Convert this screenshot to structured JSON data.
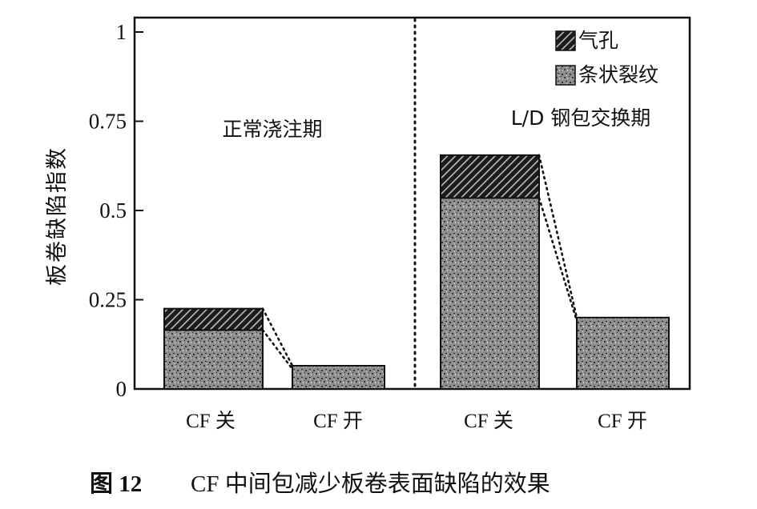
{
  "chart_data": {
    "type": "bar",
    "stacked": true,
    "ylabel": "板卷缺陷指数",
    "ylim": [
      0,
      1
    ],
    "yticks": [
      "0",
      "0.25",
      "0.5",
      "0.75",
      "1"
    ],
    "ytick_values": [
      0,
      0.25,
      0.5,
      0.75,
      1
    ],
    "categories": [
      "CF 关",
      "CF 开",
      "CF 关",
      "CF 开"
    ],
    "groups": [
      {
        "label": "正常浇注期",
        "categories": [
          0,
          1
        ]
      },
      {
        "label": "L/D 钢包交换期",
        "categories": [
          2,
          3
        ]
      }
    ],
    "series": [
      {
        "name": "条状裂纹",
        "values": [
          0.165,
          0.065,
          0.535,
          0.2
        ]
      },
      {
        "name": "气孔",
        "values": [
          0.06,
          0,
          0.12,
          0
        ]
      }
    ],
    "legend_position": "top-right",
    "grid": false
  },
  "caption": {
    "figure_number": "图 12",
    "text": "CF 中间包减少板卷表面缺陷的效果"
  }
}
